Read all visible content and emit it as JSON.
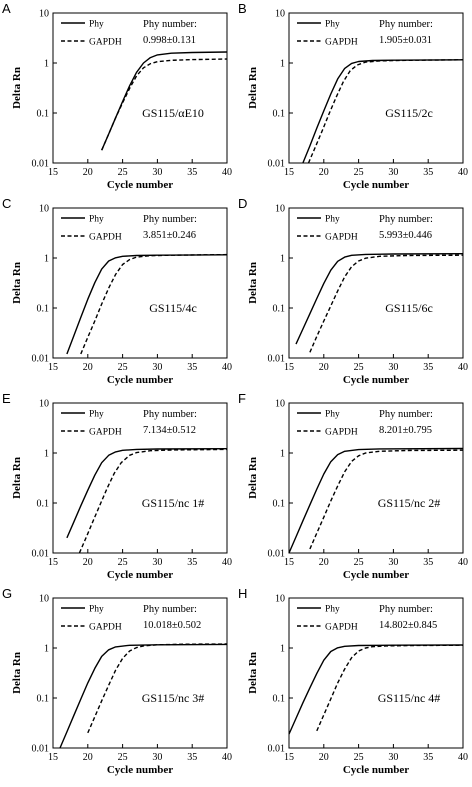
{
  "chart_data": [
    {
      "type": "line",
      "panel_label": "A",
      "sample_label": "GS115/αE10",
      "annotation_label": "Phy number:",
      "annotation_value": "0.998±0.131",
      "xlabel": "Cycle number",
      "ylabel": "Delta Rn",
      "xlim": [
        15,
        40
      ],
      "ylim": [
        0.01,
        10
      ],
      "yscale": "log",
      "x_ticks": [
        "15",
        "20",
        "25",
        "30",
        "35",
        "40"
      ],
      "y_ticks": [
        "0.01",
        "0.1",
        "1",
        "10"
      ],
      "legend_position": "top-left",
      "series": [
        {
          "name": "Phy",
          "style": "solid",
          "points": [
            [
              22,
              0.018
            ],
            [
              23,
              0.038
            ],
            [
              24,
              0.08
            ],
            [
              25,
              0.17
            ],
            [
              26,
              0.35
            ],
            [
              27,
              0.65
            ],
            [
              28,
              1.0
            ],
            [
              29,
              1.28
            ],
            [
              30,
              1.45
            ],
            [
              32,
              1.57
            ],
            [
              35,
              1.62
            ],
            [
              40,
              1.66
            ]
          ]
        },
        {
          "name": "GAPDH",
          "style": "dashed",
          "points": [
            [
              22,
              0.018
            ],
            [
              23,
              0.038
            ],
            [
              24,
              0.08
            ],
            [
              25,
              0.16
            ],
            [
              26,
              0.31
            ],
            [
              27,
              0.55
            ],
            [
              28,
              0.8
            ],
            [
              29,
              0.97
            ],
            [
              30,
              1.06
            ],
            [
              32,
              1.13
            ],
            [
              35,
              1.17
            ],
            [
              40,
              1.2
            ]
          ]
        }
      ]
    },
    {
      "type": "line",
      "panel_label": "B",
      "sample_label": "GS115/2c",
      "annotation_label": "Phy number:",
      "annotation_value": "1.905±0.031",
      "xlabel": "Cycle number",
      "ylabel": "Delta Rn",
      "xlim": [
        15,
        40
      ],
      "ylim": [
        0.01,
        10
      ],
      "yscale": "log",
      "x_ticks": [
        "15",
        "20",
        "25",
        "30",
        "35",
        "40"
      ],
      "y_ticks": [
        "0.01",
        "0.1",
        "1",
        "10"
      ],
      "legend_position": "top-left",
      "series": [
        {
          "name": "Phy",
          "style": "solid",
          "points": [
            [
              17,
              0.01
            ],
            [
              18,
              0.022
            ],
            [
              19,
              0.05
            ],
            [
              20,
              0.11
            ],
            [
              21,
              0.24
            ],
            [
              22,
              0.48
            ],
            [
              23,
              0.78
            ],
            [
              24,
              0.98
            ],
            [
              25,
              1.07
            ],
            [
              27,
              1.12
            ],
            [
              30,
              1.14
            ],
            [
              40,
              1.16
            ]
          ]
        },
        {
          "name": "GAPDH",
          "style": "dashed",
          "points": [
            [
              17.8,
              0.01
            ],
            [
              18.8,
              0.021
            ],
            [
              19.8,
              0.045
            ],
            [
              20.8,
              0.1
            ],
            [
              21.8,
              0.21
            ],
            [
              22.8,
              0.42
            ],
            [
              23.8,
              0.7
            ],
            [
              24.8,
              0.91
            ],
            [
              26,
              1.04
            ],
            [
              28,
              1.1
            ],
            [
              32,
              1.13
            ],
            [
              40,
              1.16
            ]
          ]
        }
      ]
    },
    {
      "type": "line",
      "panel_label": "C",
      "sample_label": "GS115/4c",
      "annotation_label": "Phy number:",
      "annotation_value": "3.851±0.246",
      "xlabel": "Cycle number",
      "ylabel": "Delta Rn",
      "xlim": [
        15,
        40
      ],
      "ylim": [
        0.01,
        10
      ],
      "yscale": "log",
      "x_ticks": [
        "15",
        "20",
        "25",
        "30",
        "35",
        "40"
      ],
      "y_ticks": [
        "0.01",
        "0.1",
        "1",
        "10"
      ],
      "legend_position": "top-left",
      "series": [
        {
          "name": "Phy",
          "style": "solid",
          "points": [
            [
              17,
              0.012
            ],
            [
              18,
              0.028
            ],
            [
              19,
              0.065
            ],
            [
              20,
              0.15
            ],
            [
              21,
              0.32
            ],
            [
              22,
              0.6
            ],
            [
              23,
              0.87
            ],
            [
              24,
              1.01
            ],
            [
              25,
              1.08
            ],
            [
              27,
              1.12
            ],
            [
              30,
              1.14
            ],
            [
              40,
              1.16
            ]
          ]
        },
        {
          "name": "GAPDH",
          "style": "dashed",
          "points": [
            [
              19,
              0.012
            ],
            [
              20,
              0.026
            ],
            [
              21,
              0.055
            ],
            [
              22,
              0.12
            ],
            [
              23,
              0.25
            ],
            [
              24,
              0.47
            ],
            [
              25,
              0.74
            ],
            [
              26,
              0.93
            ],
            [
              27,
              1.04
            ],
            [
              29,
              1.11
            ],
            [
              32,
              1.14
            ],
            [
              40,
              1.17
            ]
          ]
        }
      ]
    },
    {
      "type": "line",
      "panel_label": "D",
      "sample_label": "GS115/6c",
      "annotation_label": "Phy number:",
      "annotation_value": "5.993±0.446",
      "xlabel": "Cycle number",
      "ylabel": "Delta Rn",
      "xlim": [
        15,
        40
      ],
      "ylim": [
        0.01,
        10
      ],
      "yscale": "log",
      "x_ticks": [
        "15",
        "20",
        "25",
        "30",
        "35",
        "40"
      ],
      "y_ticks": [
        "0.01",
        "0.1",
        "1",
        "10"
      ],
      "legend_position": "top-left",
      "series": [
        {
          "name": "Phy",
          "style": "solid",
          "points": [
            [
              16,
              0.019
            ],
            [
              17,
              0.038
            ],
            [
              18,
              0.077
            ],
            [
              19,
              0.155
            ],
            [
              20,
              0.31
            ],
            [
              21,
              0.57
            ],
            [
              22,
              0.86
            ],
            [
              23,
              1.04
            ],
            [
              24,
              1.13
            ],
            [
              26,
              1.18
            ],
            [
              30,
              1.2
            ],
            [
              40,
              1.22
            ]
          ]
        },
        {
          "name": "GAPDH",
          "style": "dashed",
          "points": [
            [
              18,
              0.013
            ],
            [
              19,
              0.027
            ],
            [
              20,
              0.055
            ],
            [
              21,
              0.11
            ],
            [
              22,
              0.22
            ],
            [
              23,
              0.42
            ],
            [
              24,
              0.67
            ],
            [
              25,
              0.87
            ],
            [
              26,
              0.99
            ],
            [
              28,
              1.08
            ],
            [
              32,
              1.12
            ],
            [
              40,
              1.14
            ]
          ]
        }
      ]
    },
    {
      "type": "line",
      "panel_label": "E",
      "sample_label": "GS115/nc 1#",
      "annotation_label": "Phy number:",
      "annotation_value": "7.134±0.512",
      "xlabel": "Cycle number",
      "ylabel": "Delta Rn",
      "xlim": [
        15,
        40
      ],
      "ylim": [
        0.01,
        10
      ],
      "yscale": "log",
      "x_ticks": [
        "15",
        "20",
        "25",
        "30",
        "35",
        "40"
      ],
      "y_ticks": [
        "0.01",
        "0.1",
        "1",
        "10"
      ],
      "legend_position": "top-left",
      "series": [
        {
          "name": "Phy",
          "style": "solid",
          "points": [
            [
              17,
              0.02
            ],
            [
              18,
              0.042
            ],
            [
              19,
              0.088
            ],
            [
              20,
              0.18
            ],
            [
              21,
              0.36
            ],
            [
              22,
              0.64
            ],
            [
              23,
              0.9
            ],
            [
              24,
              1.05
            ],
            [
              25,
              1.13
            ],
            [
              27,
              1.18
            ],
            [
              30,
              1.2
            ],
            [
              40,
              1.22
            ]
          ]
        },
        {
          "name": "GAPDH",
          "style": "dashed",
          "points": [
            [
              18.8,
              0.01
            ],
            [
              19.8,
              0.021
            ],
            [
              20.8,
              0.045
            ],
            [
              21.8,
              0.095
            ],
            [
              22.8,
              0.2
            ],
            [
              23.8,
              0.39
            ],
            [
              24.8,
              0.64
            ],
            [
              26,
              0.9
            ],
            [
              27,
              1.02
            ],
            [
              29,
              1.11
            ],
            [
              32,
              1.15
            ],
            [
              40,
              1.18
            ]
          ]
        }
      ]
    },
    {
      "type": "line",
      "panel_label": "F",
      "sample_label": "GS115/nc 2#",
      "annotation_label": "Phy number:",
      "annotation_value": "8.201±0.795",
      "xlabel": "Cycle number",
      "ylabel": "Delta Rn",
      "xlim": [
        15,
        40
      ],
      "ylim": [
        0.01,
        10
      ],
      "yscale": "log",
      "x_ticks": [
        "15",
        "20",
        "25",
        "30",
        "35",
        "40"
      ],
      "y_ticks": [
        "0.01",
        "0.1",
        "1",
        "10"
      ],
      "legend_position": "top-left",
      "series": [
        {
          "name": "Phy",
          "style": "solid",
          "points": [
            [
              15,
              0.01
            ],
            [
              16,
              0.021
            ],
            [
              17,
              0.044
            ],
            [
              18,
              0.092
            ],
            [
              19,
              0.19
            ],
            [
              20,
              0.38
            ],
            [
              21,
              0.67
            ],
            [
              22,
              0.93
            ],
            [
              23,
              1.08
            ],
            [
              25,
              1.17
            ],
            [
              28,
              1.21
            ],
            [
              40,
              1.23
            ]
          ]
        },
        {
          "name": "GAPDH",
          "style": "dashed",
          "points": [
            [
              18,
              0.012
            ],
            [
              19,
              0.025
            ],
            [
              20,
              0.052
            ],
            [
              21,
              0.11
            ],
            [
              22,
              0.22
            ],
            [
              23,
              0.42
            ],
            [
              24,
              0.68
            ],
            [
              25,
              0.88
            ],
            [
              26,
              1.0
            ],
            [
              28,
              1.08
            ],
            [
              32,
              1.12
            ],
            [
              40,
              1.14
            ]
          ]
        }
      ]
    },
    {
      "type": "line",
      "panel_label": "G",
      "sample_label": "GS115/nc 3#",
      "annotation_label": "Phy number:",
      "annotation_value": "10.018±0.502",
      "xlabel": "Cycle number",
      "ylabel": "Delta Rn",
      "xlim": [
        15,
        40
      ],
      "ylim": [
        0.01,
        10
      ],
      "yscale": "log",
      "x_ticks": [
        "15",
        "20",
        "25",
        "30",
        "35",
        "40"
      ],
      "y_ticks": [
        "0.01",
        "0.1",
        "1",
        "10"
      ],
      "legend_position": "top-left",
      "series": [
        {
          "name": "Phy",
          "style": "solid",
          "points": [
            [
              16,
              0.01
            ],
            [
              17,
              0.021
            ],
            [
              18,
              0.045
            ],
            [
              19,
              0.095
            ],
            [
              20,
              0.2
            ],
            [
              21,
              0.39
            ],
            [
              22,
              0.68
            ],
            [
              23,
              0.92
            ],
            [
              24,
              1.05
            ],
            [
              26,
              1.13
            ],
            [
              30,
              1.16
            ],
            [
              40,
              1.18
            ]
          ]
        },
        {
          "name": "GAPDH",
          "style": "dashed",
          "points": [
            [
              20,
              0.02
            ],
            [
              21,
              0.042
            ],
            [
              22,
              0.088
            ],
            [
              23,
              0.18
            ],
            [
              24,
              0.36
            ],
            [
              25,
              0.62
            ],
            [
              26,
              0.87
            ],
            [
              27,
              1.02
            ],
            [
              28,
              1.1
            ],
            [
              30,
              1.16
            ],
            [
              34,
              1.19
            ],
            [
              40,
              1.2
            ]
          ]
        }
      ]
    },
    {
      "type": "line",
      "panel_label": "H",
      "sample_label": "GS115/nc 4#",
      "annotation_label": "Phy number:",
      "annotation_value": "14.802±0.845",
      "xlabel": "Cycle number",
      "ylabel": "Delta Rn",
      "xlim": [
        15,
        40
      ],
      "ylim": [
        0.01,
        10
      ],
      "yscale": "log",
      "x_ticks": [
        "15",
        "20",
        "25",
        "30",
        "35",
        "40"
      ],
      "y_ticks": [
        "0.01",
        "0.1",
        "1",
        "10"
      ],
      "legend_position": "top-left",
      "series": [
        {
          "name": "Phy",
          "style": "solid",
          "points": [
            [
              15,
              0.019
            ],
            [
              16,
              0.039
            ],
            [
              17,
              0.08
            ],
            [
              18,
              0.16
            ],
            [
              19,
              0.31
            ],
            [
              20,
              0.57
            ],
            [
              21,
              0.85
            ],
            [
              22,
              1.01
            ],
            [
              23,
              1.08
            ],
            [
              25,
              1.12
            ],
            [
              30,
              1.14
            ],
            [
              40,
              1.15
            ]
          ]
        },
        {
          "name": "GAPDH",
          "style": "dashed",
          "points": [
            [
              19,
              0.022
            ],
            [
              20,
              0.046
            ],
            [
              21,
              0.096
            ],
            [
              22,
              0.2
            ],
            [
              23,
              0.38
            ],
            [
              24,
              0.64
            ],
            [
              25,
              0.87
            ],
            [
              26,
              1.0
            ],
            [
              27,
              1.06
            ],
            [
              29,
              1.1
            ],
            [
              33,
              1.12
            ],
            [
              40,
              1.14
            ]
          ]
        }
      ]
    }
  ]
}
